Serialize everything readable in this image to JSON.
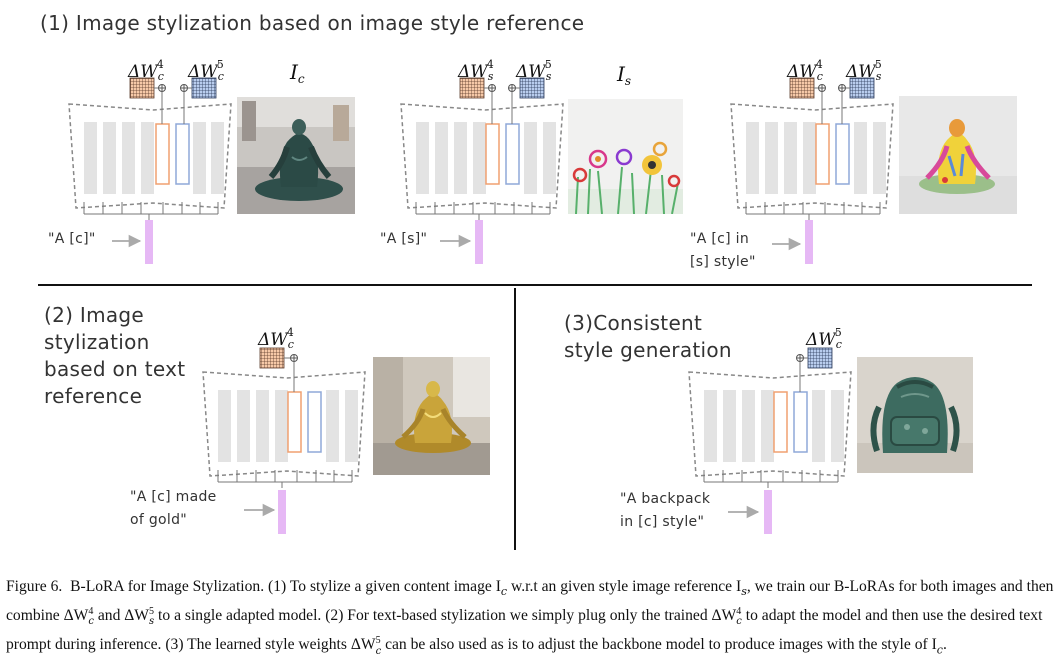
{
  "section1": {
    "title": "(1) Image stylization based on image style reference",
    "panel_a": {
      "w_left": {
        "base": "ΔW",
        "sub": "c",
        "sup": "4"
      },
      "w_right": {
        "base": "ΔW",
        "sub": "c",
        "sup": "5"
      },
      "image_label": {
        "base": "I",
        "sub": "c"
      },
      "prompt_lines": [
        "\"A [c]\""
      ]
    },
    "panel_b": {
      "w_left": {
        "base": "ΔW",
        "sub": "s",
        "sup": "4"
      },
      "w_right": {
        "base": "ΔW",
        "sub": "s",
        "sup": "5"
      },
      "image_label": {
        "base": "I",
        "sub": "s"
      },
      "prompt_lines": [
        "\"A [s]\""
      ]
    },
    "panel_c": {
      "w_left": {
        "base": "ΔW",
        "sub": "c",
        "sup": "4"
      },
      "w_right": {
        "base": "ΔW",
        "sub": "s",
        "sup": "5"
      },
      "prompt_lines": [
        "\"A [c] in",
        "[s] style\""
      ]
    }
  },
  "section2": {
    "title_lines": [
      "(2) Image",
      "stylization",
      "based on text",
      "reference"
    ],
    "w": {
      "base": "ΔW",
      "sub": "c",
      "sup": "4"
    },
    "prompt_lines": [
      "\"A [c] made",
      "of gold\""
    ]
  },
  "section3": {
    "title_lines": [
      "(3)Consistent",
      "style generation"
    ],
    "w": {
      "base": "ΔW",
      "sub": "c",
      "sup": "5"
    },
    "prompt_lines": [
      "\"A backpack",
      "in [c] style\""
    ]
  },
  "caption": [
    "Figure 6.  B-LoRA for Image Stylization. (1) To stylize a given content image I",
    "c",
    " w.r.t an given style image reference I",
    "s",
    ", we train our B-LoRAs for both images and then combine ΔW",
    "c",
    "4",
    " and ΔW",
    "s",
    "5",
    " to a single adapted model. (2) For text-based stylization we simply plug only the trained ΔW",
    "c",
    "4",
    " to adapt the model and then use the desired text prompt during inference. (3) The learned style weights ΔW",
    "c",
    "5",
    " can be also used as is to adjust the backbone model to produce images with the style of I",
    "c",
    "."
  ],
  "colors": {
    "orange_block": "#f0a070",
    "blue_block": "#8fa8d8",
    "text_encoder": "#e6b8f5",
    "gray_block": "#e3e3e3"
  }
}
